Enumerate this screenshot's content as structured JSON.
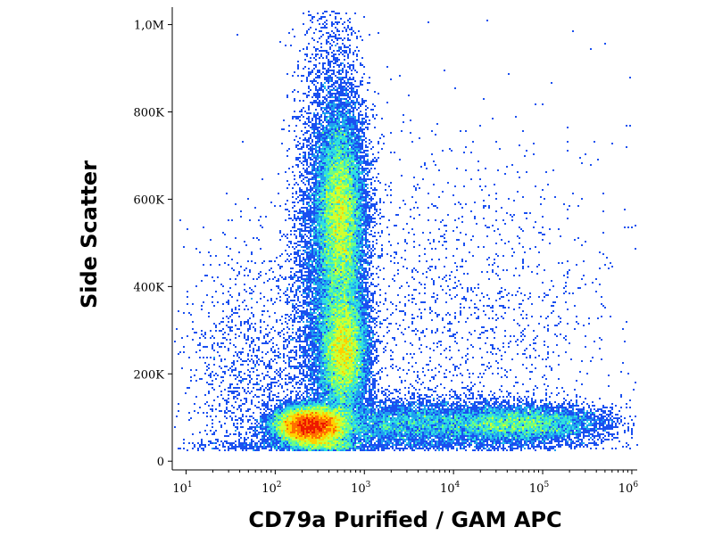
{
  "chart_data": {
    "type": "scatter",
    "subtype": "flow-cytometry density dot plot",
    "title": "",
    "xlabel": "CD79a Purified / GAM APC",
    "ylabel": "Side Scatter",
    "x_scale": "log",
    "xlim": [
      7,
      1150000
    ],
    "ylim": [
      -20000,
      1040000
    ],
    "x_ticks": [
      {
        "base": "10",
        "exp": "1",
        "value": 10
      },
      {
        "base": "10",
        "exp": "2",
        "value": 100
      },
      {
        "base": "10",
        "exp": "3",
        "value": 1000
      },
      {
        "base": "10",
        "exp": "4",
        "value": 10000
      },
      {
        "base": "10",
        "exp": "5",
        "value": 100000
      },
      {
        "base": "10",
        "exp": "6",
        "value": 1000000
      }
    ],
    "y_ticks": [
      {
        "label": "0",
        "value": 0
      },
      {
        "label": "200K",
        "value": 200000
      },
      {
        "label": "400K",
        "value": 400000
      },
      {
        "label": "600K",
        "value": 600000
      },
      {
        "label": "800K",
        "value": 800000
      },
      {
        "label": "1,0M",
        "value": 1000000
      }
    ],
    "density_colormap": [
      "#1010d0",
      "#1a50f0",
      "#20a0f0",
      "#30e0e0",
      "#70ff80",
      "#d0ff30",
      "#ffd000",
      "#ff7000",
      "#ee1800"
    ],
    "populations": [
      {
        "x_center": 250,
        "y_center": 80000,
        "x_spread_decades": 0.2,
        "y_spread": 22000,
        "weight": 0.24
      },
      {
        "x_center": 550,
        "y_center": 560000,
        "x_spread_decades": 0.13,
        "y_spread": 120000,
        "weight": 0.2
      },
      {
        "x_center": 600,
        "y_center": 250000,
        "x_spread_decades": 0.13,
        "y_spread": 70000,
        "weight": 0.15
      },
      {
        "x_center": 420,
        "y_center": 420000,
        "x_spread_decades": 0.2,
        "y_spread": 260000,
        "weight": 0.14
      },
      {
        "x_center": 60000,
        "y_center": 85000,
        "x_spread_decades": 0.45,
        "y_spread": 22000,
        "weight": 0.09
      },
      {
        "x_center": 3000,
        "y_center": 85000,
        "x_spread_decades": 0.6,
        "y_spread": 28000,
        "weight": 0.08
      },
      {
        "x_center": 10000,
        "y_center": 300000,
        "x_spread_decades": 0.9,
        "y_spread": 220000,
        "weight": 0.025
      },
      {
        "x_center": 60,
        "y_center": 180000,
        "x_spread_decades": 0.4,
        "y_spread": 150000,
        "weight": 0.02
      }
    ],
    "grid": false,
    "legend": "none"
  }
}
